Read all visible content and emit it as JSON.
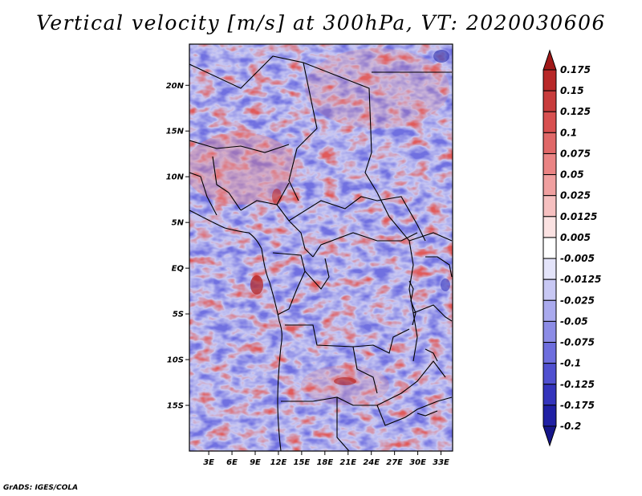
{
  "title": "Vertical velocity [m/s] at 300hPa, VT: 2020030606",
  "footer": "GrADS: IGES/COLA",
  "map": {
    "variable": "Vertical velocity",
    "units": "m/s",
    "level": "300hPa",
    "valid_time": "2020030606",
    "lat_ticks": [
      "20N",
      "15N",
      "10N",
      "5N",
      "EQ",
      "5S",
      "10S",
      "15S"
    ],
    "lat_values": [
      20,
      15,
      10,
      5,
      0,
      -5,
      -10,
      -15
    ],
    "lon_ticks": [
      "3E",
      "6E",
      "9E",
      "12E",
      "15E",
      "18E",
      "21E",
      "24E",
      "27E",
      "30E",
      "33E"
    ],
    "lon_values": [
      3,
      6,
      9,
      12,
      15,
      18,
      21,
      24,
      27,
      30,
      33
    ],
    "lat_range": [
      -20,
      24.5
    ],
    "lon_range": [
      0.5,
      34.5
    ]
  },
  "colorbar": {
    "labels": [
      "0.175",
      "0.15",
      "0.125",
      "0.1",
      "0.075",
      "0.05",
      "0.025",
      "0.0125",
      "0.005",
      "-0.005",
      "-0.0125",
      "-0.025",
      "-0.05",
      "-0.075",
      "-0.1",
      "-0.125",
      "-0.175",
      "-0.2"
    ],
    "colors": [
      "#a01818",
      "#b82828",
      "#c83c3c",
      "#d85050",
      "#e06868",
      "#ea8484",
      "#f0a0a0",
      "#f6c0c0",
      "#fbe2e2",
      "#ffffff",
      "#e4e4fa",
      "#c8c8f4",
      "#aaaaee",
      "#8c8ce6",
      "#6e6ede",
      "#5050d0",
      "#3434bc",
      "#2020a4",
      "#16168a"
    ]
  }
}
